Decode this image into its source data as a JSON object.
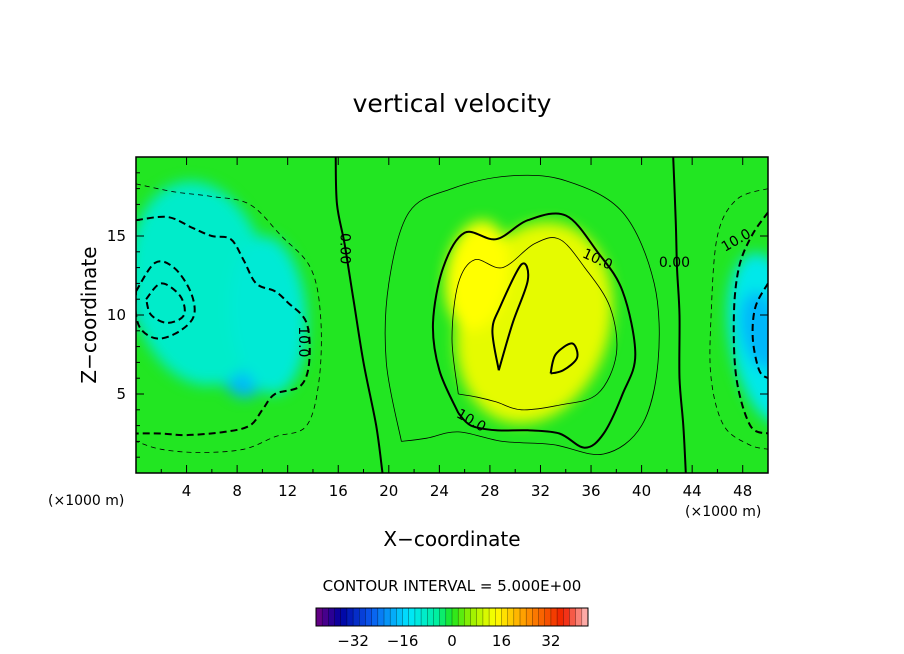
{
  "chart_data": {
    "type": "heatmap",
    "title": "vertical velocity",
    "xlabel": "X−coordinate",
    "ylabel": "Z−coordinate",
    "x_unit_left": "(×1000 m)",
    "x_unit_right": "(×1000 m)",
    "xlim": [
      0,
      50
    ],
    "ylim": [
      0,
      20
    ],
    "x_ticks": [
      4,
      8,
      12,
      16,
      20,
      24,
      28,
      32,
      36,
      40,
      44,
      48
    ],
    "y_ticks": [
      5,
      10,
      15
    ],
    "contour_interval_text": "CONTOUR INTERVAL = 5.000E+00",
    "contour_interval": 5.0,
    "colorbar_range": [
      -44,
      44
    ],
    "colorbar_ticks": [
      -32,
      -16,
      0,
      16,
      32
    ],
    "colorbar_tick_labels": [
      "−32",
      "−16",
      "0",
      "16",
      "32"
    ],
    "contour_labels": [
      {
        "text": "0.00",
        "x": 16.5,
        "z": 14.2,
        "angle": 90
      },
      {
        "text": "0.00",
        "x": 42.6,
        "z": 13.3,
        "angle": 0
      },
      {
        "text": "10.0",
        "x": 36.5,
        "z": 13.5,
        "angle": 25
      },
      {
        "text": "10.0",
        "x": 26.5,
        "z": 3.3,
        "angle": 30
      },
      {
        "text": "10.0",
        "x": 13.2,
        "z": 8.3,
        "angle": 90
      },
      {
        "text": "10.0",
        "x": 47.5,
        "z": 14.7,
        "angle": -30
      }
    ],
    "blobs": [
      {
        "x": 2.8,
        "z": 10.8,
        "sx": 3.2,
        "sz": 3.2,
        "a": -22
      },
      {
        "x": 8.0,
        "z": 7.5,
        "sx": 2.0,
        "sz": 2.8,
        "a": -16
      },
      {
        "x": 5.0,
        "z": 12.0,
        "sx": 5.5,
        "sz": 6.5,
        "a": -9
      },
      {
        "x": 10.5,
        "z": 10.0,
        "sx": 3.0,
        "sz": 5.0,
        "a": -4
      },
      {
        "x": 29.5,
        "z": 9.5,
        "sx": 1.6,
        "sz": 3.2,
        "a": 23
      },
      {
        "x": 33.0,
        "z": 9.0,
        "sx": 2.0,
        "sz": 2.2,
        "a": 20
      },
      {
        "x": 34.5,
        "z": 7.2,
        "sx": 1.5,
        "sz": 2.0,
        "a": 18
      },
      {
        "x": 31.5,
        "z": 9.5,
        "sx": 6.0,
        "sz": 6.5,
        "a": 17
      },
      {
        "x": 27.0,
        "z": 12.5,
        "sx": 2.5,
        "sz": 3.5,
        "a": 8
      },
      {
        "x": 50.0,
        "z": 8.5,
        "sx": 3.0,
        "sz": 5.5,
        "a": -10
      },
      {
        "x": 49.5,
        "z": 9.0,
        "sx": 1.6,
        "sz": 2.5,
        "a": -12
      }
    ],
    "contours": [
      {
        "level": 0,
        "style": "solid",
        "points": [
          [
            15.8,
            20
          ],
          [
            15.9,
            17
          ],
          [
            16.5,
            14.5
          ],
          [
            17.2,
            11
          ],
          [
            18,
            7
          ],
          [
            19,
            3
          ],
          [
            19.5,
            0
          ]
        ]
      },
      {
        "level": 0,
        "style": "solid",
        "points": [
          [
            42.5,
            20
          ],
          [
            42.7,
            16
          ],
          [
            42.8,
            13
          ],
          [
            43,
            10
          ],
          [
            43,
            6
          ],
          [
            43.3,
            3
          ],
          [
            43.5,
            0
          ]
        ]
      },
      {
        "level": 10,
        "style": "solid",
        "points": [
          [
            25.5,
            3.8
          ],
          [
            24.0,
            6.5
          ],
          [
            23.5,
            9.5
          ],
          [
            24.3,
            13
          ],
          [
            26,
            15.2
          ],
          [
            28.5,
            14.8
          ],
          [
            31,
            16
          ],
          [
            34,
            16.3
          ],
          [
            36.5,
            14
          ],
          [
            38.5,
            11.5
          ],
          [
            39.5,
            7.5
          ],
          [
            38.5,
            5
          ],
          [
            37,
            2.5
          ],
          [
            35.5,
            1.6
          ],
          [
            33.5,
            2.5
          ],
          [
            31,
            2.7
          ],
          [
            28.5,
            2.7
          ],
          [
            26.5,
            3.0
          ],
          [
            25.5,
            3.8
          ]
        ]
      },
      {
        "level": 15,
        "style": "thin",
        "points": [
          [
            25.5,
            5
          ],
          [
            25.0,
            8.5
          ],
          [
            25.5,
            12
          ],
          [
            26.8,
            13.5
          ],
          [
            29.0,
            13
          ],
          [
            31.5,
            14.5
          ],
          [
            33.5,
            14.8
          ],
          [
            35.5,
            13
          ],
          [
            37.5,
            10.5
          ],
          [
            38,
            7.5
          ],
          [
            36.5,
            5
          ],
          [
            33.5,
            4.3
          ],
          [
            30.5,
            4.0
          ],
          [
            28.5,
            4.5
          ],
          [
            27,
            4.8
          ],
          [
            25.5,
            5
          ]
        ]
      },
      {
        "level": 20,
        "style": "solid",
        "points": [
          [
            28.7,
            6.5
          ],
          [
            28.2,
            9.0
          ],
          [
            28.8,
            10.5
          ],
          [
            30.5,
            13.2
          ],
          [
            31.0,
            12.2
          ],
          [
            29.8,
            9.5
          ],
          [
            28.7,
            6.5
          ]
        ]
      },
      {
        "level": 20,
        "style": "solid",
        "points": [
          [
            32.8,
            6.3
          ],
          [
            33.2,
            7.5
          ],
          [
            34.5,
            8.2
          ],
          [
            34.9,
            7.3
          ],
          [
            33.8,
            6.5
          ],
          [
            32.8,
            6.3
          ]
        ]
      },
      {
        "level": 5,
        "style": "thin",
        "points": [
          [
            21,
            2
          ],
          [
            19.8,
            7
          ],
          [
            20,
            12
          ],
          [
            21.6,
            16.5
          ],
          [
            25,
            18
          ],
          [
            29.5,
            18.8
          ],
          [
            34,
            18.5
          ],
          [
            38.5,
            16.5
          ],
          [
            41,
            12
          ],
          [
            41.3,
            7
          ],
          [
            40,
            3
          ],
          [
            37,
            1.2
          ],
          [
            33,
            1.8
          ],
          [
            29,
            2
          ],
          [
            25.5,
            2.6
          ],
          [
            23,
            2.2
          ],
          [
            21,
            2
          ]
        ]
      },
      {
        "level": -10,
        "style": "dash",
        "points": [
          [
            0,
            16.0
          ],
          [
            2.5,
            16.2
          ],
          [
            4.5,
            15.5
          ],
          [
            6,
            15.0
          ],
          [
            7.5,
            14.8
          ],
          [
            8.5,
            13.5
          ],
          [
            9.5,
            12.0
          ],
          [
            11,
            11.5
          ],
          [
            12,
            10.8
          ],
          [
            13.5,
            9.5
          ],
          [
            13.7,
            7.0
          ],
          [
            13.0,
            5.5
          ],
          [
            11,
            5.0
          ],
          [
            10,
            4.0
          ],
          [
            9.0,
            3.0
          ],
          [
            7,
            2.6
          ],
          [
            4,
            2.4
          ],
          [
            2,
            2.5
          ],
          [
            0,
            2.5
          ]
        ]
      },
      {
        "level": -15,
        "style": "dash",
        "points": [
          [
            0,
            11.5
          ],
          [
            1.5,
            13.3
          ],
          [
            3.0,
            13.0
          ],
          [
            4.3,
            11.5
          ],
          [
            4.6,
            10.0
          ],
          [
            3.5,
            9.0
          ],
          [
            1.8,
            8.5
          ],
          [
            0.5,
            9.0
          ],
          [
            0,
            10.0
          ],
          [
            0,
            11.5
          ]
        ]
      },
      {
        "level": -20,
        "style": "dash",
        "points": [
          [
            0.8,
            11.0
          ],
          [
            2.0,
            12.0
          ],
          [
            3.5,
            11.2
          ],
          [
            3.8,
            10.0
          ],
          [
            2.5,
            9.5
          ],
          [
            1.2,
            10.0
          ],
          [
            0.8,
            11.0
          ]
        ]
      },
      {
        "level": -5,
        "style": "thindash",
        "points": [
          [
            0,
            18.3
          ],
          [
            3,
            17.8
          ],
          [
            6,
            17.5
          ],
          [
            9,
            17.0
          ],
          [
            11.5,
            15.0
          ],
          [
            13.8,
            13.0
          ],
          [
            14.6,
            10.0
          ],
          [
            14.5,
            6.0
          ],
          [
            13.5,
            3.0
          ],
          [
            11,
            2.3
          ],
          [
            8.5,
            1.5
          ],
          [
            5,
            1.3
          ],
          [
            2,
            1.5
          ],
          [
            0,
            2.0
          ]
        ]
      },
      {
        "level": -10,
        "style": "dash",
        "points": [
          [
            50,
            16.5
          ],
          [
            48.7,
            15.0
          ],
          [
            47.7,
            13.0
          ],
          [
            47.3,
            10.0
          ],
          [
            47.5,
            6.0
          ],
          [
            48.6,
            3.0
          ],
          [
            50,
            2.5
          ]
        ]
      },
      {
        "level": -5,
        "style": "thindash",
        "points": [
          [
            50,
            18.0
          ],
          [
            47.5,
            17.3
          ],
          [
            46.0,
            15.0
          ],
          [
            45.5,
            10.0
          ],
          [
            45.5,
            6.0
          ],
          [
            46.5,
            3.0
          ],
          [
            48.5,
            1.8
          ],
          [
            50,
            1.5
          ]
        ]
      },
      {
        "level": -15,
        "style": "dash",
        "points": [
          [
            50,
            12.0
          ],
          [
            49.0,
            10.5
          ],
          [
            48.8,
            8.5
          ],
          [
            49.3,
            6.5
          ],
          [
            50,
            6.0
          ]
        ]
      }
    ]
  }
}
